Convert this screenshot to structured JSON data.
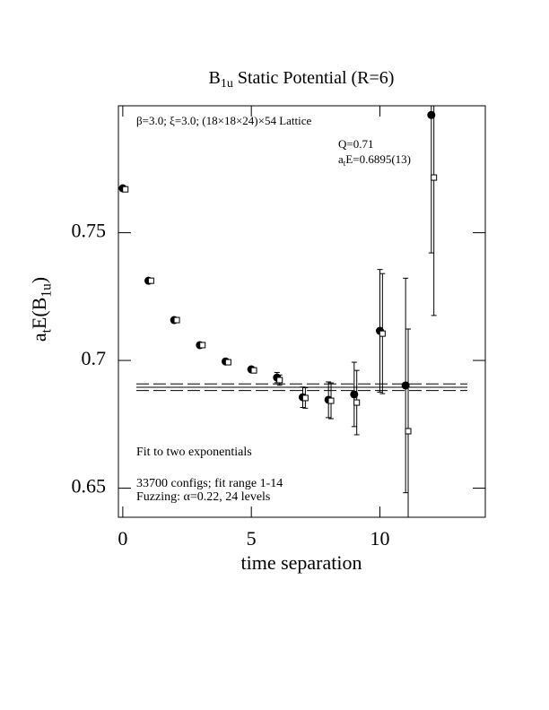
{
  "chart_data": {
    "type": "scatter",
    "title": [
      "B",
      "1u",
      " Static Potential (R=6)"
    ],
    "xlabel": "time separation",
    "ylabel": [
      "a",
      "t",
      "E(B",
      "1u",
      ")"
    ],
    "annotations": [
      [
        "β=3.0; ξ=3.0; (18×18×24)×54 Lattice"
      ],
      [
        "Q=0.71"
      ],
      [
        "a",
        "t",
        "E=0.6895(13)"
      ],
      [
        "Fit to two exponentials"
      ],
      [
        "33700 configs; fit range 1-14"
      ],
      [
        "Fuzzing: α=0.22, 24 levels"
      ]
    ],
    "xlim": [
      -0.17,
      14.1
    ],
    "ylim": [
      0.6386,
      0.7997
    ],
    "xticks": [
      0,
      5,
      10
    ],
    "yticks": [
      {
        "value": 0.65,
        "label": "0.65"
      },
      {
        "value": 0.7,
        "label": "0.7"
      },
      {
        "value": 0.75,
        "label": "0.75"
      }
    ],
    "fit": {
      "value": 0.6895,
      "error": 0.0013
    },
    "series": [
      {
        "marker": "circle",
        "color": "#000000",
        "x": [
          0,
          1,
          2,
          3,
          4,
          5,
          6,
          7,
          8,
          9,
          10,
          11,
          12
        ],
        "values": [
          0.7674,
          0.7312,
          0.7158,
          0.706,
          0.6996,
          0.6965,
          0.6933,
          0.6856,
          0.6846,
          0.6867,
          0.7116,
          0.6902,
          0.7961
        ],
        "errors": [
          0.0008,
          0.0007,
          0.0007,
          0.0007,
          0.0007,
          0.001,
          0.002,
          0.004,
          0.007,
          0.0126,
          0.024,
          0.042,
          0.054
        ]
      },
      {
        "marker": "square",
        "color": "#000000",
        "x": [
          0.1,
          1.1,
          2.1,
          3.1,
          4.1,
          5.1,
          6.1,
          7.1,
          8.1,
          9.1,
          10.1,
          11.1,
          12.1
        ],
        "values": [
          0.767,
          0.7312,
          0.7158,
          0.706,
          0.6993,
          0.6961,
          0.6923,
          0.6853,
          0.6842,
          0.6835,
          0.7105,
          0.6723,
          0.7716
        ],
        "errors": [
          0.0008,
          0.0007,
          0.0007,
          0.0007,
          0.0007,
          0.001,
          0.002,
          0.004,
          0.007,
          0.0126,
          0.0235,
          0.04,
          0.054
        ]
      }
    ]
  }
}
